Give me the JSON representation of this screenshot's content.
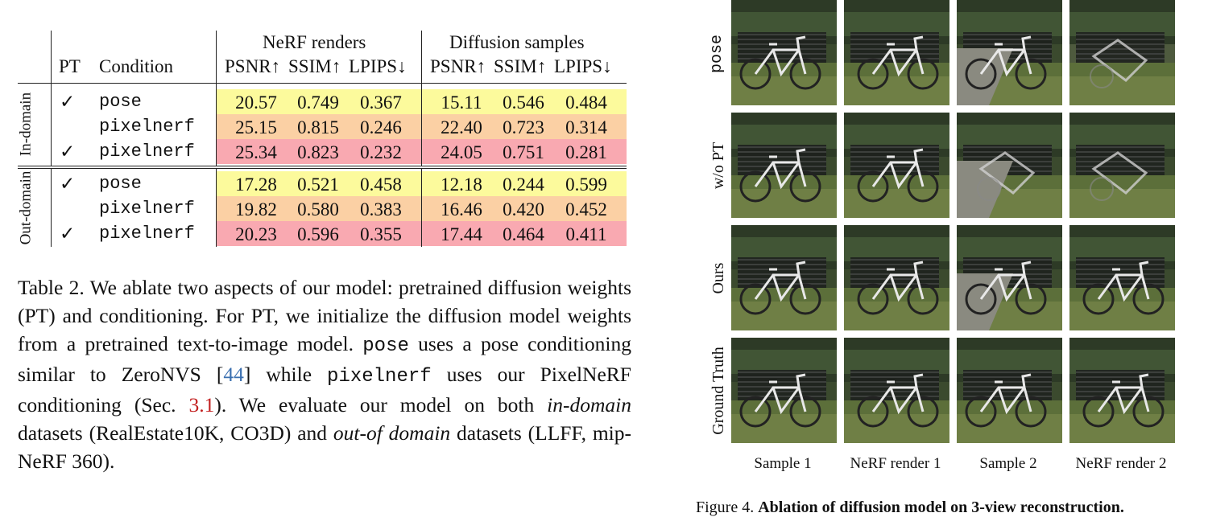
{
  "table": {
    "headers": {
      "pt": "PT",
      "condition": "Condition",
      "group1": "NeRF renders",
      "group2": "Diffusion samples",
      "metrics": [
        "PSNR↑",
        "SSIM↑",
        "LPIPS↓",
        "PSNR↑",
        "SSIM↑",
        "LPIPS↓"
      ]
    },
    "sections": [
      {
        "label": "In-domain",
        "rows": [
          {
            "pt": "✓",
            "condition": "pose",
            "values": [
              "20.57",
              "0.749",
              "0.367",
              "15.11",
              "0.546",
              "0.484"
            ],
            "color": "#fcfa9c"
          },
          {
            "pt": "",
            "condition": "pixelnerf",
            "values": [
              "25.15",
              "0.815",
              "0.246",
              "22.40",
              "0.723",
              "0.314"
            ],
            "color": "#fbd0a4"
          },
          {
            "pt": "✓",
            "condition": "pixelnerf",
            "values": [
              "25.34",
              "0.823",
              "0.232",
              "24.05",
              "0.751",
              "0.281"
            ],
            "color": "#f9a9b1"
          }
        ]
      },
      {
        "label": "Out-domain",
        "rows": [
          {
            "pt": "✓",
            "condition": "pose",
            "values": [
              "17.28",
              "0.521",
              "0.458",
              "12.18",
              "0.244",
              "0.599"
            ],
            "color": "#fcfa9c"
          },
          {
            "pt": "",
            "condition": "pixelnerf",
            "values": [
              "19.82",
              "0.580",
              "0.383",
              "16.46",
              "0.420",
              "0.452"
            ],
            "color": "#fbd0a4"
          },
          {
            "pt": "✓",
            "condition": "pixelnerf",
            "values": [
              "20.23",
              "0.596",
              "0.355",
              "17.44",
              "0.464",
              "0.411"
            ],
            "color": "#f9a9b1"
          }
        ]
      }
    ]
  },
  "caption": {
    "t1": "Table 2.  We ablate two aspects of our model: pretrained diffusion weights (PT) and conditioning. For PT, we initialize the diffusion model weights from a pretrained text-to-image model. ",
    "m1": "pose",
    "t2": " uses a pose conditioning similar to ZeroNVS [",
    "ref1": "44",
    "t3": "] while ",
    "m2": "pixelnerf",
    "t4": " uses our PixelNeRF conditioning (Sec. ",
    "ref2": "3.1",
    "t5": ").  We evaluate our model on both ",
    "i1": "in-domain",
    "t6": " datasets (RealEstate10K, CO3D) and ",
    "i2": "out-of domain",
    "t7": " datasets (LLFF, mip-NeRF 360)."
  },
  "figure": {
    "row_labels": [
      "pose",
      "w/o PT",
      "Ours",
      "Ground Truth"
    ],
    "col_labels": [
      "Sample 1",
      "NeRF render 1",
      "Sample 2",
      "NeRF render 2"
    ],
    "caption_prefix": "Figure 4. ",
    "caption_bold": "Ablation of diffusion model on 3-view reconstruction."
  }
}
